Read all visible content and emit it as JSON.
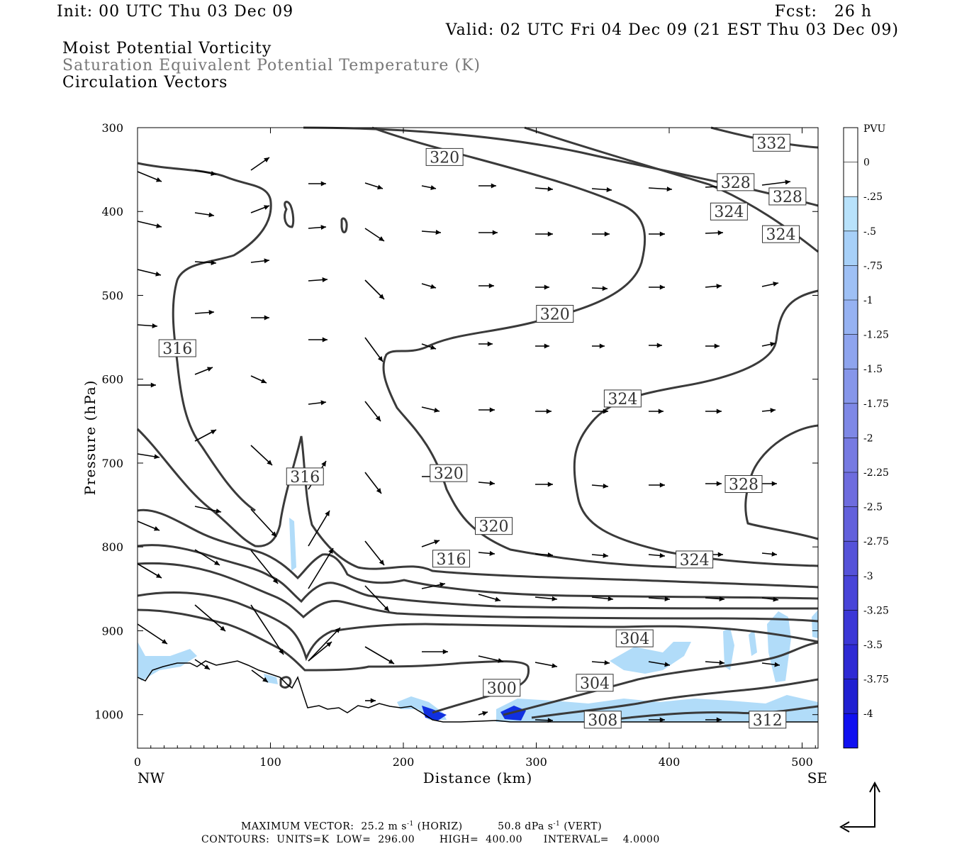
{
  "header": {
    "init": "Init: 00 UTC Thu 03 Dec 09",
    "fcst": "Fcst:   26 h",
    "valid": "Valid: 02 UTC Fri 04 Dec 09 (21 EST Thu 03 Dec 09)"
  },
  "fields": {
    "shaded": "Moist Potential Vorticity",
    "contour": "Saturation Equivalent Potential Temperature (K)",
    "vectors": "Circulation Vectors"
  },
  "footer": {
    "max_vector_label": "MAXIMUM VECTOR:",
    "horiz": "25.2 m s",
    "horiz_unit": "(HORIZ)",
    "vert": "50.8 dPa s",
    "vert_unit": "(VERT)",
    "exp": "-1",
    "contours": "CONTOURS:  UNITS=K  LOW=  296.00       HIGH=  400.00      INTERVAL=    4.0000"
  },
  "colors": {
    "contour": "#3a3a3a",
    "terrain": "#000000",
    "pv_light": "#a8d8f8",
    "pv_dark": "#1030e0"
  },
  "chart_data": {
    "type": "cross-section",
    "xlabel": "Distance (km)",
    "ylabel": "Pressure (hPa)",
    "xlim": [
      0,
      512
    ],
    "ylim": [
      1040,
      300
    ],
    "x_ticks": [
      0,
      100,
      200,
      300,
      400,
      500
    ],
    "y_ticks": [
      300,
      400,
      500,
      600,
      700,
      800,
      900,
      1000
    ],
    "x_end_labels": {
      "left": "NW",
      "right": "SE"
    },
    "colorbar": {
      "title": "PVU",
      "labels": [
        "0",
        "-.25",
        "-.5",
        "-.75",
        "-1",
        "-1.25",
        "-1.5",
        "-1.75",
        "-2",
        "-2.25",
        "-2.5",
        "-2.75",
        "-3",
        "-3.25",
        "-3.5",
        "-3.75",
        "-4"
      ],
      "colors": [
        "#ffffff",
        "#ffffff",
        "#b8e2fb",
        "#a7d0f8",
        "#9ec0f5",
        "#96b2f2",
        "#8ea4ee",
        "#8696ea",
        "#7e88e6",
        "#767ae2",
        "#6e6cde",
        "#6260dc",
        "#5552d9",
        "#4844d8",
        "#3b37d6",
        "#2e2ad4",
        "#2020d2",
        "#1010f0"
      ]
    },
    "contour_labels": [
      {
        "text": "332",
        "x": 477,
        "p": 318
      },
      {
        "text": "320",
        "x": 231,
        "p": 335
      },
      {
        "text": "328",
        "x": 450,
        "p": 365
      },
      {
        "text": "328",
        "x": 489,
        "p": 382
      },
      {
        "text": "324",
        "x": 445,
        "p": 400
      },
      {
        "text": "324",
        "x": 484,
        "p": 427
      },
      {
        "text": "320",
        "x": 314,
        "p": 522
      },
      {
        "text": "316",
        "x": 30,
        "p": 563
      },
      {
        "text": "324",
        "x": 365,
        "p": 623
      },
      {
        "text": "316",
        "x": 126,
        "p": 716
      },
      {
        "text": "320",
        "x": 234,
        "p": 712
      },
      {
        "text": "328",
        "x": 456,
        "p": 725
      },
      {
        "text": "320",
        "x": 268,
        "p": 775
      },
      {
        "text": "316",
        "x": 236,
        "p": 814
      },
      {
        "text": "324",
        "x": 419,
        "p": 815
      },
      {
        "text": "304",
        "x": 374,
        "p": 909
      },
      {
        "text": "300",
        "x": 274,
        "p": 968
      },
      {
        "text": "304",
        "x": 344,
        "p": 962
      },
      {
        "text": "308",
        "x": 350,
        "p": 1006
      },
      {
        "text": "312",
        "x": 474,
        "p": 1006
      }
    ],
    "vector_scale_note": "MAXIMUM VECTOR"
  }
}
